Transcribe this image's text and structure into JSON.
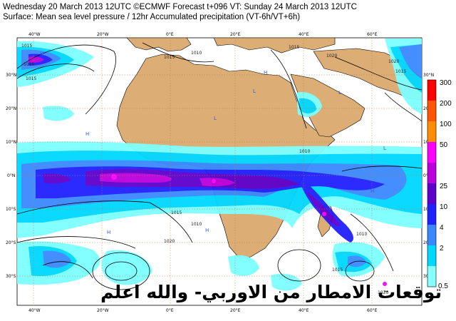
{
  "header": {
    "line1": "Wednesday 20 March 2013 12UTC ©ECMWF Forecast t+096 VT: Sunday 24 March 2013 12UTC",
    "line2": "Surface: Mean sea level pressure / 12hr Accumulated precipitation (VT-6h/VT+6h)"
  },
  "lon_labels_top": [
    "40°W",
    "20°W",
    "0°E",
    "20°E",
    "40°E",
    "60°E"
  ],
  "lon_labels_bottom": [
    "40°W",
    "20°W",
    "0°E",
    "20°E",
    "40°E",
    "60°E"
  ],
  "lat_labels_left": [
    "30°N",
    "20°N",
    "10°N",
    "0°N",
    "10°S",
    "20°S",
    "30°S"
  ],
  "lat_labels_right": [
    "30°N",
    "20°N",
    "10°N",
    "0°N",
    "10°S",
    "20°S",
    "30°S"
  ],
  "isobars": [
    "1015",
    "1010",
    "1015",
    "1015",
    "1010",
    "1015",
    "1020",
    "1010",
    "1020",
    "1015",
    "1020",
    "1015",
    "1010",
    "1015",
    "1010",
    "1020"
  ],
  "pressure_centers": [
    "H",
    "H",
    "H",
    "H",
    "L",
    "L",
    "L",
    "H",
    "H",
    "L"
  ],
  "colorbar": {
    "labels": [
      "300",
      "200",
      "100",
      "50",
      "25",
      "10",
      "4",
      "2",
      "0.5"
    ],
    "colors": [
      "#ff0000",
      "#ff5500",
      "#ff8c00",
      "#ff00ff",
      "#bb00dd",
      "#5e00cc",
      "#2020ff",
      "#3a88ff",
      "#00d8ff",
      "#88ffff"
    ]
  },
  "watermark": "توقعات الامطار من الاوربي- والله اعلم",
  "colors": {
    "land": "#dcae76",
    "ocean": "#ffffff",
    "grid": "#b08040"
  }
}
